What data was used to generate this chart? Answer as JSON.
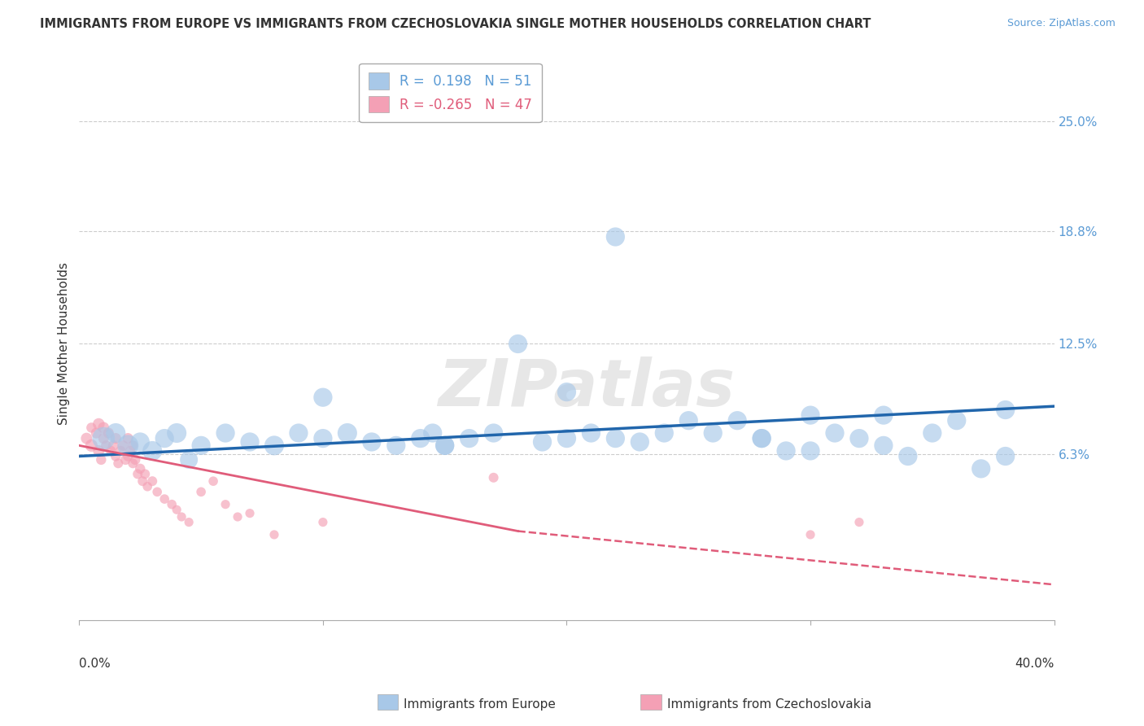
{
  "title": "IMMIGRANTS FROM EUROPE VS IMMIGRANTS FROM CZECHOSLOVAKIA SINGLE MOTHER HOUSEHOLDS CORRELATION CHART",
  "source": "Source: ZipAtlas.com",
  "ylabel": "Single Mother Households",
  "blue_R": 0.198,
  "blue_N": 51,
  "pink_R": -0.265,
  "pink_N": 47,
  "blue_color": "#a8c8e8",
  "pink_color": "#f4a0b5",
  "blue_line_color": "#2166ac",
  "pink_line_color": "#e05c7a",
  "legend_label_blue": "Immigrants from Europe",
  "legend_label_pink": "Immigrants from Czechoslovakia",
  "xlim": [
    0.0,
    0.4
  ],
  "ylim": [
    -0.03,
    0.28
  ],
  "ytick_values": [
    0.063,
    0.125,
    0.188,
    0.25
  ],
  "ytick_labels": [
    "6.3%",
    "12.5%",
    "18.8%",
    "25.0%"
  ],
  "blue_trend": [
    0.0,
    0.4,
    0.062,
    0.09
  ],
  "pink_trend_solid": [
    0.0,
    0.18,
    0.068,
    0.02
  ],
  "pink_trend_dash": [
    0.18,
    0.4,
    0.02,
    -0.01
  ],
  "blue_scatter_x": [
    0.01,
    0.015,
    0.02,
    0.025,
    0.03,
    0.035,
    0.04,
    0.045,
    0.05,
    0.06,
    0.07,
    0.08,
    0.09,
    0.1,
    0.11,
    0.12,
    0.13,
    0.14,
    0.145,
    0.15,
    0.16,
    0.17,
    0.18,
    0.19,
    0.2,
    0.2,
    0.21,
    0.22,
    0.23,
    0.24,
    0.25,
    0.26,
    0.27,
    0.28,
    0.29,
    0.3,
    0.3,
    0.31,
    0.32,
    0.33,
    0.34,
    0.35,
    0.36,
    0.37,
    0.38,
    0.38,
    0.22,
    0.15,
    0.1,
    0.28,
    0.33
  ],
  "blue_scatter_y": [
    0.072,
    0.075,
    0.068,
    0.07,
    0.065,
    0.072,
    0.075,
    0.06,
    0.068,
    0.075,
    0.07,
    0.068,
    0.075,
    0.072,
    0.075,
    0.07,
    0.068,
    0.072,
    0.075,
    0.068,
    0.072,
    0.075,
    0.125,
    0.07,
    0.098,
    0.072,
    0.075,
    0.185,
    0.07,
    0.075,
    0.082,
    0.075,
    0.082,
    0.072,
    0.065,
    0.085,
    0.065,
    0.075,
    0.072,
    0.068,
    0.062,
    0.075,
    0.082,
    0.055,
    0.062,
    0.088,
    0.072,
    0.068,
    0.095,
    0.072,
    0.085
  ],
  "blue_scatter_size": [
    400,
    300,
    350,
    280,
    300,
    280,
    300,
    250,
    280,
    280,
    280,
    300,
    280,
    280,
    300,
    280,
    280,
    280,
    280,
    280,
    280,
    280,
    280,
    280,
    280,
    280,
    280,
    280,
    280,
    280,
    280,
    280,
    280,
    280,
    280,
    280,
    280,
    280,
    280,
    280,
    280,
    280,
    280,
    280,
    280,
    280,
    280,
    280,
    280,
    280,
    280
  ],
  "pink_scatter_x": [
    0.003,
    0.005,
    0.005,
    0.007,
    0.008,
    0.008,
    0.009,
    0.01,
    0.01,
    0.011,
    0.012,
    0.013,
    0.014,
    0.015,
    0.015,
    0.016,
    0.017,
    0.018,
    0.019,
    0.02,
    0.02,
    0.021,
    0.022,
    0.022,
    0.023,
    0.024,
    0.025,
    0.026,
    0.027,
    0.028,
    0.03,
    0.032,
    0.035,
    0.038,
    0.04,
    0.042,
    0.045,
    0.05,
    0.055,
    0.06,
    0.065,
    0.07,
    0.08,
    0.1,
    0.17,
    0.3,
    0.32
  ],
  "pink_scatter_y": [
    0.072,
    0.068,
    0.078,
    0.075,
    0.065,
    0.08,
    0.06,
    0.072,
    0.078,
    0.068,
    0.075,
    0.065,
    0.068,
    0.062,
    0.072,
    0.058,
    0.065,
    0.068,
    0.06,
    0.062,
    0.072,
    0.065,
    0.068,
    0.058,
    0.06,
    0.052,
    0.055,
    0.048,
    0.052,
    0.045,
    0.048,
    0.042,
    0.038,
    0.035,
    0.032,
    0.028,
    0.025,
    0.042,
    0.048,
    0.035,
    0.028,
    0.03,
    0.018,
    0.025,
    0.05,
    0.018,
    0.025
  ],
  "pink_scatter_size": [
    100,
    120,
    80,
    90,
    100,
    110,
    80,
    90,
    100,
    80,
    90,
    80,
    85,
    80,
    90,
    75,
    80,
    85,
    80,
    80,
    90,
    80,
    80,
    75,
    80,
    75,
    80,
    75,
    75,
    70,
    75,
    70,
    70,
    70,
    65,
    65,
    65,
    70,
    70,
    65,
    65,
    65,
    65,
    65,
    75,
    65,
    65
  ]
}
